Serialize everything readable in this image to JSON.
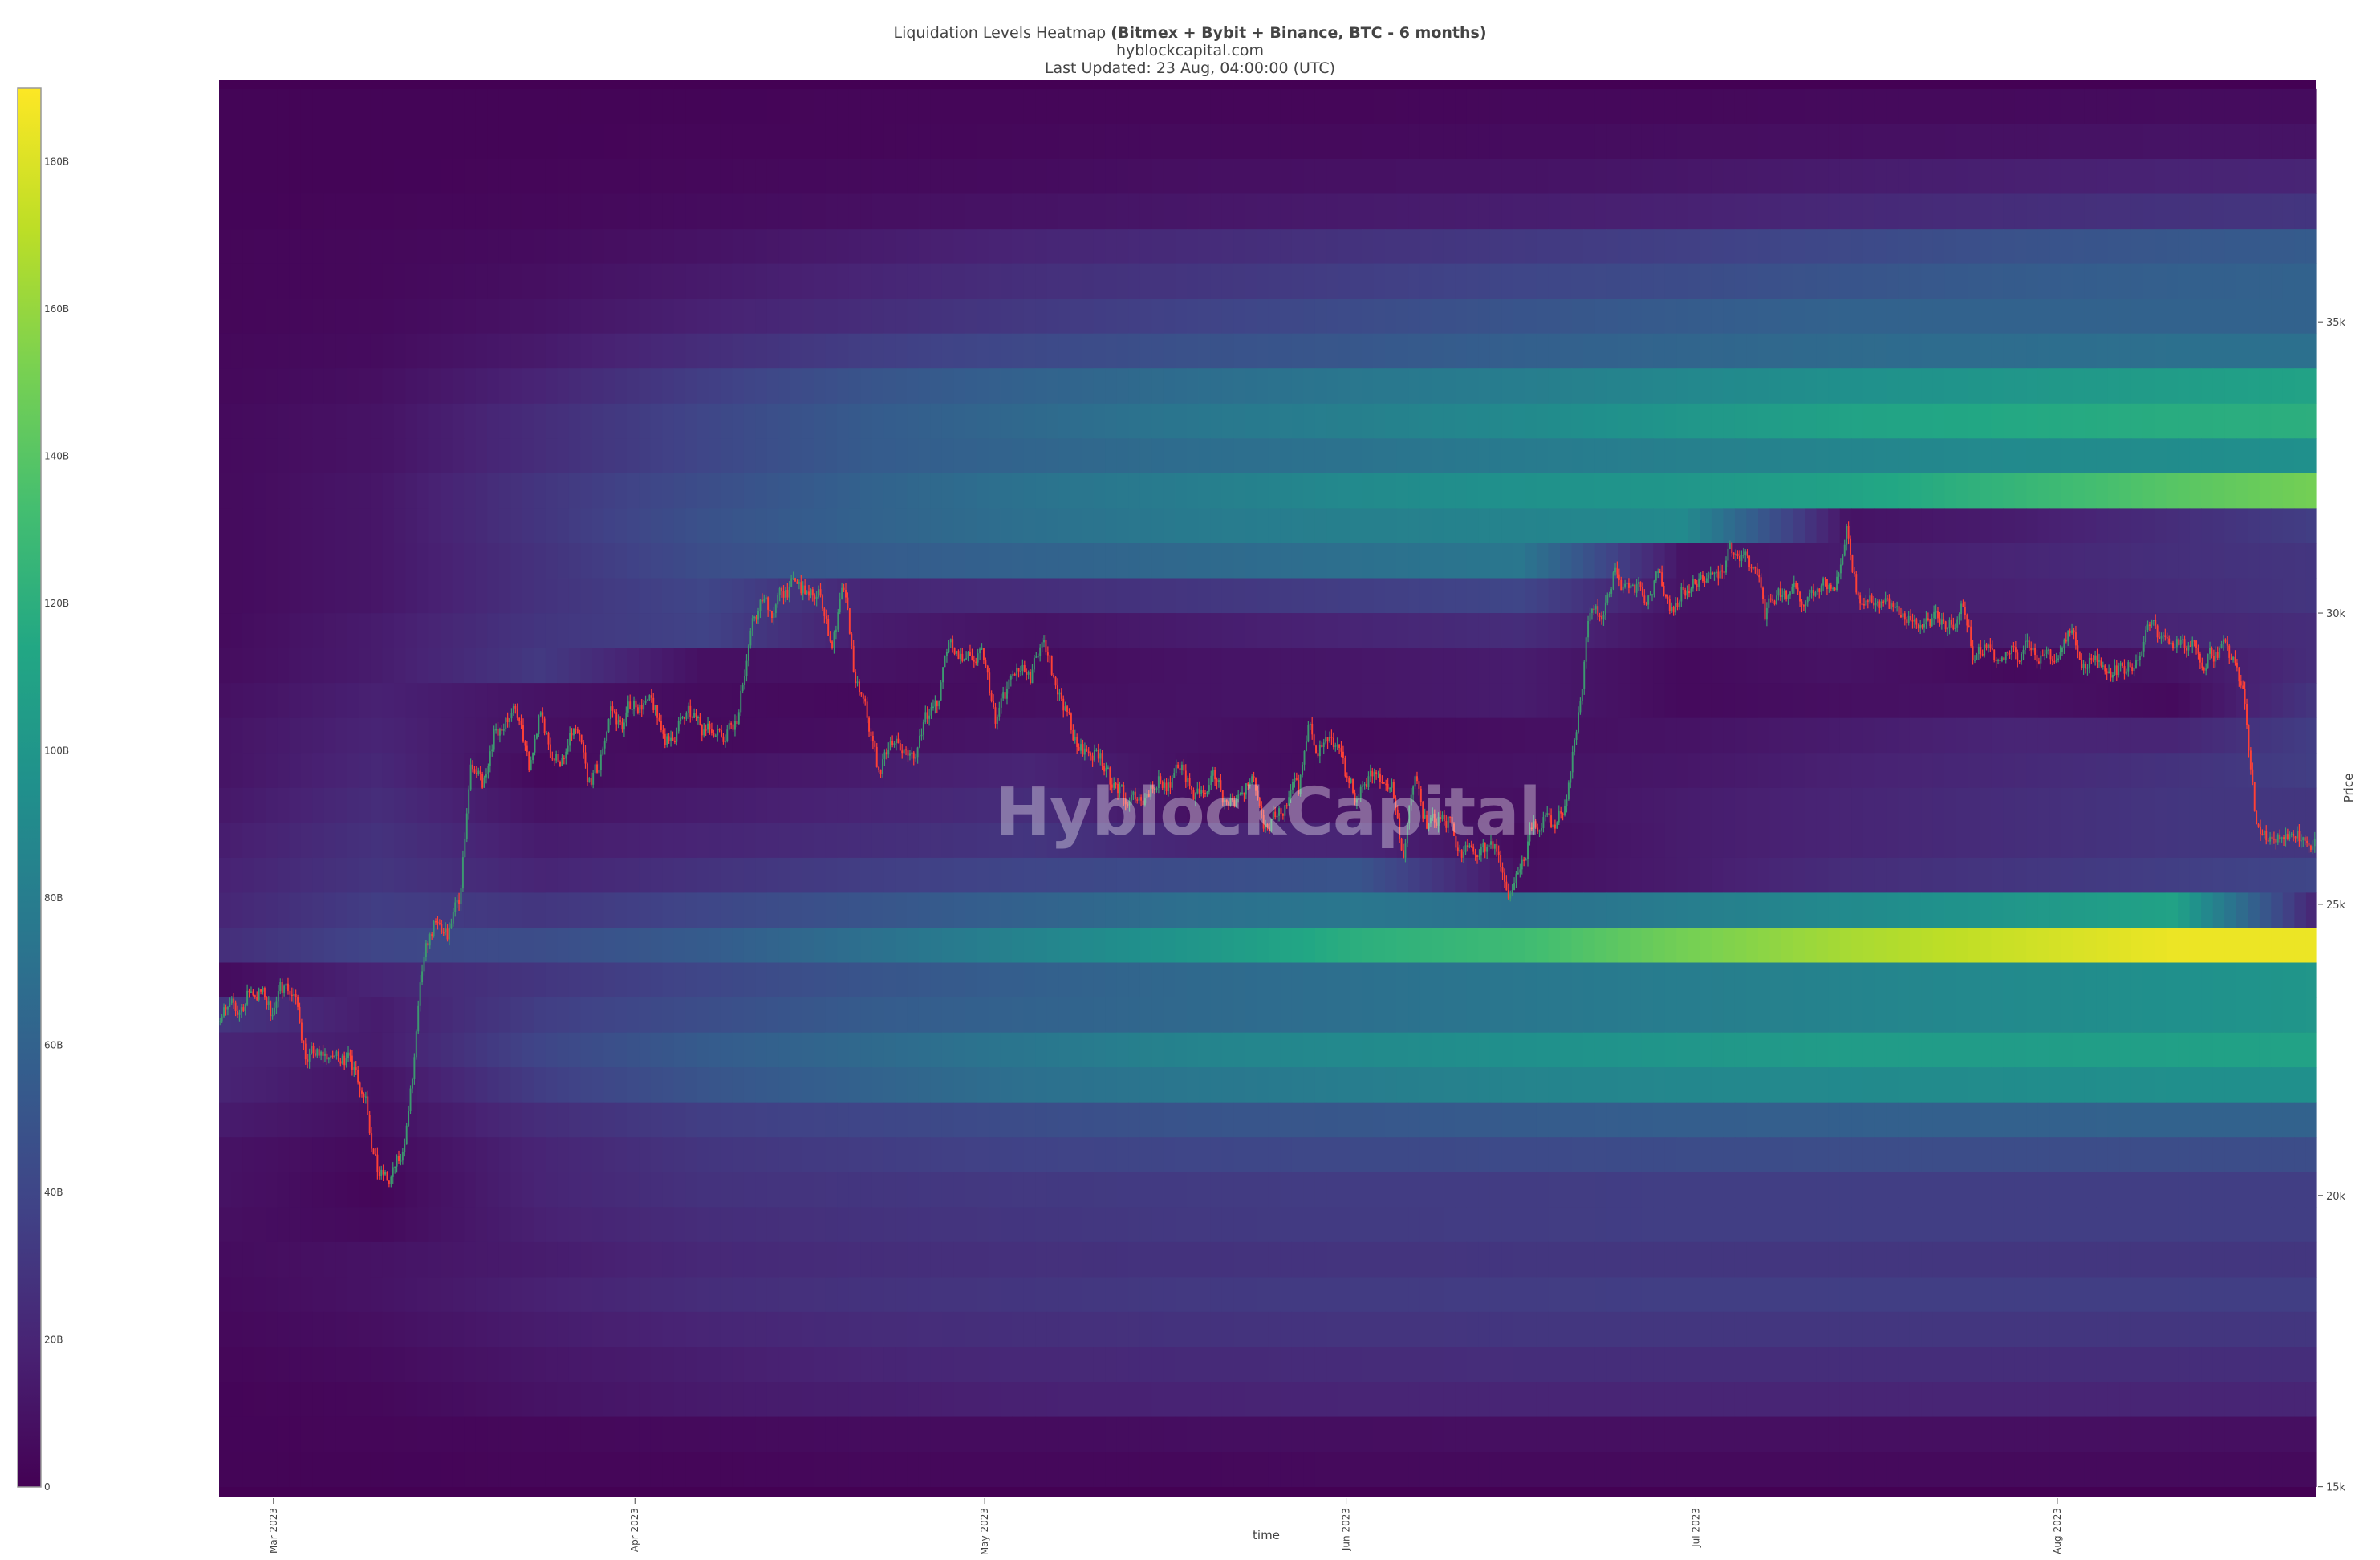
{
  "header": {
    "title_plain": "Liquidation Levels Heatmap ",
    "title_bold": "(Bitmex + Bybit + Binance, BTC - 6 months)",
    "subtitle": "hyblockcapital.com",
    "updated": "Last Updated: 23 Aug, 04:00:00 (UTC)"
  },
  "watermark": "HyblockCapital",
  "chart_data": {
    "type": "heatmap",
    "title": "Liquidation Levels Heatmap (Bitmex + Bybit + Binance, BTC - 6 months)",
    "xlabel": "time",
    "ylabel": "Price",
    "x_range": [
      "2023-02-24T08:00",
      "2023-08-23T04:00"
    ],
    "y_range": [
      14830,
      39150
    ],
    "x_ticks": [
      {
        "date": "2023-03-01",
        "label": "Mar 2023"
      },
      {
        "date": "2023-04-01",
        "label": "Apr 2023"
      },
      {
        "date": "2023-05-01",
        "label": "May 2023"
      },
      {
        "date": "2023-06-01",
        "label": "Jun 2023"
      },
      {
        "date": "2023-07-01",
        "label": "Jul 2023"
      },
      {
        "date": "2023-08-01",
        "label": "Aug 2023"
      }
    ],
    "y_ticks": [
      {
        "value": 15000,
        "label": "15k"
      },
      {
        "value": 20000,
        "label": "20k"
      },
      {
        "value": 25000,
        "label": "25k"
      },
      {
        "value": 30000,
        "label": "30k"
      },
      {
        "value": 35000,
        "label": "35k"
      }
    ],
    "colorbar": {
      "colorscale": "viridis",
      "zmin": 0,
      "zmax": 190,
      "ticks": [
        {
          "value": 0,
          "label": "0"
        },
        {
          "value": 20,
          "label": "20B"
        },
        {
          "value": 40,
          "label": "40B"
        },
        {
          "value": 60,
          "label": "60B"
        },
        {
          "value": 80,
          "label": "80B"
        },
        {
          "value": 100,
          "label": "100B"
        },
        {
          "value": 120,
          "label": "120B"
        },
        {
          "value": 140,
          "label": "140B"
        },
        {
          "value": 160,
          "label": "160B"
        },
        {
          "value": 180,
          "label": "180B"
        }
      ]
    },
    "heatmap": {
      "unit": "B",
      "level_step": 600,
      "times": [
        "2023-02-24",
        "2023-03-10",
        "2023-03-24",
        "2023-04-07",
        "2023-04-21",
        "2023-05-05",
        "2023-05-19",
        "2023-06-02",
        "2023-06-16",
        "2023-06-30",
        "2023-07-14",
        "2023-07-28",
        "2023-08-11",
        "2023-08-23"
      ],
      "levels": [
        {
          "price": 38400,
          "z": [
            2,
            2,
            2,
            2,
            3,
            3,
            3,
            3,
            4,
            4,
            5,
            5,
            6,
            6
          ]
        },
        {
          "price": 37800,
          "z": [
            2,
            2,
            2,
            3,
            3,
            4,
            5,
            5,
            6,
            7,
            8,
            9,
            10,
            10
          ]
        },
        {
          "price": 37200,
          "z": [
            2,
            2,
            3,
            4,
            5,
            6,
            8,
            9,
            10,
            12,
            15,
            17,
            19,
            20
          ]
        },
        {
          "price": 36600,
          "z": [
            2,
            3,
            4,
            6,
            8,
            10,
            12,
            14,
            16,
            18,
            22,
            25,
            28,
            30
          ]
        },
        {
          "price": 36000,
          "z": [
            3,
            4,
            6,
            10,
            15,
            20,
            24,
            28,
            32,
            36,
            42,
            48,
            52,
            55
          ]
        },
        {
          "price": 35400,
          "z": [
            3,
            4,
            8,
            14,
            20,
            26,
            30,
            35,
            40,
            44,
            50,
            55,
            58,
            60
          ]
        },
        {
          "price": 34800,
          "z": [
            3,
            5,
            10,
            18,
            25,
            32,
            38,
            44,
            50,
            55,
            60,
            60,
            60,
            60
          ]
        },
        {
          "price": 34200,
          "z": [
            4,
            6,
            14,
            25,
            35,
            42,
            48,
            52,
            58,
            62,
            66,
            68,
            70,
            70
          ]
        },
        {
          "price": 33600,
          "z": [
            4,
            8,
            20,
            35,
            50,
            60,
            68,
            75,
            80,
            88,
            95,
            100,
            105,
            110
          ]
        },
        {
          "price": 33000,
          "z": [
            5,
            10,
            25,
            40,
            55,
            65,
            75,
            82,
            90,
            100,
            110,
            115,
            118,
            120
          ]
        },
        {
          "price": 32400,
          "z": [
            5,
            10,
            25,
            40,
            55,
            62,
            68,
            72,
            78,
            82,
            86,
            90,
            92,
            95
          ]
        },
        {
          "price": 31800,
          "z": [
            5,
            12,
            30,
            45,
            60,
            72,
            80,
            90,
            96,
            100,
            110,
            125,
            140,
            150
          ]
        },
        {
          "price": 31200,
          "z": [
            5,
            12,
            30,
            48,
            60,
            70,
            78,
            82,
            85,
            90,
            10,
            15,
            25,
            35
          ]
        },
        {
          "price": 30600,
          "z": [
            5,
            12,
            28,
            45,
            55,
            60,
            65,
            70,
            75,
            10,
            15,
            20,
            26,
            30
          ]
        },
        {
          "price": 30000,
          "z": [
            5,
            12,
            28,
            40,
            20,
            25,
            30,
            35,
            40,
            10,
            15,
            18,
            24,
            30
          ]
        },
        {
          "price": 29400,
          "z": [
            5,
            15,
            30,
            38,
            15,
            10,
            15,
            20,
            25,
            8,
            12,
            15,
            20,
            25
          ]
        },
        {
          "price": 28800,
          "z": [
            6,
            15,
            32,
            8,
            10,
            6,
            10,
            12,
            15,
            5,
            10,
            5,
            10,
            25
          ]
        },
        {
          "price": 28200,
          "z": [
            8,
            18,
            10,
            6,
            5,
            8,
            10,
            12,
            15,
            5,
            8,
            10,
            5,
            30
          ]
        },
        {
          "price": 27600,
          "z": [
            10,
            20,
            8,
            5,
            8,
            12,
            10,
            5,
            8,
            10,
            15,
            20,
            20,
            35
          ]
        },
        {
          "price": 27000,
          "z": [
            10,
            22,
            5,
            10,
            15,
            20,
            8,
            6,
            10,
            12,
            18,
            22,
            28,
            35
          ]
        },
        {
          "price": 26400,
          "z": [
            12,
            25,
            10,
            15,
            20,
            25,
            8,
            10,
            8,
            15,
            20,
            25,
            30,
            30
          ]
        },
        {
          "price": 25800,
          "z": [
            15,
            28,
            15,
            20,
            25,
            30,
            20,
            20,
            6,
            15,
            20,
            25,
            30,
            30
          ]
        },
        {
          "price": 25200,
          "z": [
            18,
            30,
            20,
            28,
            35,
            40,
            45,
            50,
            8,
            15,
            25,
            30,
            35,
            40
          ]
        },
        {
          "price": 24600,
          "z": [
            20,
            35,
            30,
            40,
            50,
            60,
            70,
            75,
            70,
            80,
            90,
            100,
            110,
            20
          ]
        },
        {
          "price": 24000,
          "z": [
            25,
            40,
            45,
            55,
            70,
            85,
            100,
            120,
            130,
            150,
            165,
            175,
            185,
            185
          ]
        },
        {
          "price": 23400,
          "z": [
            5,
            20,
            30,
            40,
            50,
            58,
            65,
            70,
            75,
            80,
            85,
            90,
            95,
            100
          ]
        },
        {
          "price": 22800,
          "z": [
            30,
            15,
            35,
            45,
            55,
            60,
            65,
            70,
            75,
            80,
            85,
            90,
            95,
            100
          ]
        },
        {
          "price": 22200,
          "z": [
            20,
            15,
            40,
            55,
            65,
            75,
            85,
            90,
            95,
            100,
            105,
            105,
            108,
            110
          ]
        },
        {
          "price": 21600,
          "z": [
            20,
            10,
            35,
            50,
            60,
            70,
            75,
            80,
            85,
            88,
            90,
            92,
            94,
            95
          ]
        },
        {
          "price": 21000,
          "z": [
            15,
            8,
            25,
            35,
            40,
            45,
            50,
            52,
            55,
            57,
            58,
            59,
            60,
            60
          ]
        },
        {
          "price": 20400,
          "z": [
            10,
            5,
            20,
            30,
            34,
            38,
            40,
            42,
            43,
            44,
            45,
            45,
            45,
            45
          ]
        },
        {
          "price": 19800,
          "z": [
            10,
            3,
            20,
            28,
            30,
            32,
            33,
            34,
            34,
            35,
            35,
            35,
            35,
            35
          ]
        },
        {
          "price": 19200,
          "z": [
            8,
            5,
            18,
            25,
            28,
            30,
            32,
            33,
            34,
            35,
            35,
            35,
            35,
            35
          ]
        },
        {
          "price": 18600,
          "z": [
            6,
            10,
            15,
            22,
            25,
            27,
            28,
            29,
            30,
            30,
            30,
            30,
            30,
            30
          ]
        },
        {
          "price": 18000,
          "z": [
            5,
            10,
            18,
            25,
            28,
            30,
            32,
            33,
            34,
            35,
            35,
            35,
            35,
            35
          ]
        },
        {
          "price": 17400,
          "z": [
            4,
            8,
            15,
            20,
            24,
            26,
            28,
            29,
            30,
            30,
            30,
            30,
            30,
            30
          ]
        },
        {
          "price": 16800,
          "z": [
            3,
            6,
            12,
            16,
            20,
            22,
            23,
            24,
            25,
            25,
            25,
            25,
            25,
            25
          ]
        },
        {
          "price": 16200,
          "z": [
            2,
            4,
            10,
            14,
            16,
            18,
            19,
            20,
            20,
            20,
            20,
            20,
            20,
            20
          ]
        },
        {
          "price": 15600,
          "z": [
            2,
            3,
            4,
            5,
            6,
            6,
            7,
            7,
            8,
            8,
            8,
            8,
            8,
            8
          ]
        },
        {
          "price": 15000,
          "z": [
            2,
            2,
            3,
            3,
            4,
            4,
            4,
            5,
            5,
            5,
            5,
            5,
            5,
            5
          ]
        }
      ]
    },
    "price_series": {
      "type": "candlestick",
      "start_date": "2023-02-24",
      "interval": "1d",
      "up_color": "#3d9970",
      "down_color": "#ff4136",
      "close": [
        23200,
        23100,
        23500,
        23500,
        23100,
        23600,
        23400,
        22300,
        22400,
        22400,
        22400,
        22200,
        21700,
        20400,
        20200,
        20600,
        22000,
        24100,
        24700,
        24400,
        25000,
        27400,
        27000,
        28000,
        28200,
        28200,
        27300,
        28300,
        27500,
        27500,
        28000,
        27100,
        27300,
        28400,
        28000,
        28500,
        28500,
        28200,
        27800,
        28200,
        28200,
        28000,
        27900,
        28000,
        28300,
        29700,
        30200,
        30000,
        30400,
        30500,
        30300,
        30300,
        29400,
        30400,
        28800,
        28200,
        27300,
        27800,
        27600,
        27500,
        28300,
        28400,
        29500,
        29300,
        29200,
        29200,
        28100,
        28700,
        29000,
        28800,
        29500,
        28900,
        28400,
        27700,
        27600,
        27600,
        27000,
        26800,
        26800,
        26900,
        27200,
        27000,
        27400,
        26800,
        26900,
        27100,
        26700,
        26900,
        27200,
        26300,
        26500,
        26700,
        26900,
        28100,
        27700,
        27700,
        27200,
        26800,
        27200,
        27100,
        27100,
        25800,
        27200,
        26300,
        26500,
        26500,
        25800,
        25900,
        25900,
        25900,
        25100,
        25600,
        26300,
        26500,
        26300,
        26800,
        28300,
        30000,
        29900,
        30700,
        30500,
        30500,
        30300,
        30700,
        30100,
        30400,
        30500,
        30600,
        30600,
        31200,
        31000,
        30800,
        29900,
        30300,
        30300,
        30200,
        30400,
        30600,
        30400,
        31500,
        30300,
        30300,
        30200,
        30100,
        29900,
        29800,
        29900,
        29800,
        29800,
        30100,
        29200,
        29400,
        29200,
        29300,
        29300,
        29400,
        29300,
        29200,
        29700,
        29200,
        29200,
        29100,
        29100,
        29000,
        29200,
        29800,
        29600,
        29400,
        29400,
        29400,
        29300,
        29400,
        29200,
        28700,
        26600,
        26100,
        26200,
        26200,
        26100,
        26000,
        26200
      ]
    }
  }
}
